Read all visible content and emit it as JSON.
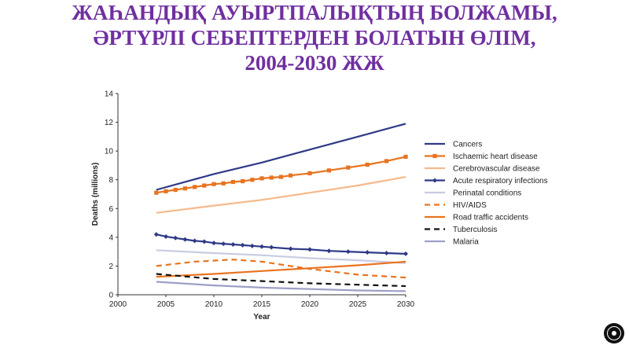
{
  "slide": {
    "title_lines": [
      "ЖАҺАНДЫҚ АУЫРТПАЛЫҚТЫҢ БОЛЖАМЫ,",
      "ӘРТҮРЛІ СЕБЕПТЕРДЕН БОЛАТЫН ӨЛІМ,",
      "2004-2030 ЖЖ"
    ],
    "title_color": "#7030a0",
    "nav_icon": "circle-nav-icon"
  },
  "chart_data": {
    "type": "line",
    "title": "",
    "xlabel": "Year",
    "ylabel": "Deaths (millions)",
    "xlim": [
      2000,
      2030
    ],
    "ylim": [
      0,
      14
    ],
    "xticks": [
      "2000",
      "2005",
      "2010",
      "2015",
      "2020",
      "2025",
      "2030"
    ],
    "yticks": [
      "0",
      "2",
      "4",
      "6",
      "8",
      "10",
      "12",
      "14"
    ],
    "grid": false,
    "legend_position": "right",
    "series": [
      {
        "name": "Cancers",
        "color": "#2e3a87",
        "style": "solid",
        "marker": "none",
        "x": [
          2004,
          2010,
          2015,
          2020,
          2025,
          2030
        ],
        "y": [
          7.3,
          8.4,
          9.2,
          10.1,
          11.0,
          11.9
        ]
      },
      {
        "name": "Ischaemic heart disease",
        "color": "#e8731f",
        "style": "solid",
        "marker": "square",
        "x": [
          2004,
          2005,
          2006,
          2007,
          2008,
          2009,
          2010,
          2011,
          2012,
          2013,
          2014,
          2015,
          2016,
          2017,
          2018,
          2020,
          2022,
          2024,
          2026,
          2028,
          2030
        ],
        "y": [
          7.1,
          7.2,
          7.3,
          7.4,
          7.5,
          7.6,
          7.7,
          7.75,
          7.85,
          7.9,
          8.0,
          8.1,
          8.15,
          8.2,
          8.3,
          8.45,
          8.65,
          8.85,
          9.05,
          9.3,
          9.6
        ]
      },
      {
        "name": "Cerebrovascular disease",
        "color": "#f7b98b",
        "style": "solid",
        "marker": "none",
        "x": [
          2004,
          2010,
          2015,
          2020,
          2025,
          2030
        ],
        "y": [
          5.7,
          6.2,
          6.6,
          7.1,
          7.6,
          8.2
        ]
      },
      {
        "name": "Acute respiratory infections",
        "color": "#2e3a87",
        "style": "solid",
        "marker": "diamond",
        "x": [
          2004,
          2005,
          2006,
          2007,
          2008,
          2009,
          2010,
          2011,
          2012,
          2013,
          2014,
          2015,
          2016,
          2018,
          2020,
          2022,
          2024,
          2026,
          2028,
          2030
        ],
        "y": [
          4.2,
          4.05,
          3.95,
          3.85,
          3.75,
          3.7,
          3.6,
          3.55,
          3.5,
          3.45,
          3.4,
          3.35,
          3.3,
          3.2,
          3.15,
          3.05,
          3.0,
          2.95,
          2.9,
          2.85
        ]
      },
      {
        "name": "Perinatal conditions",
        "color": "#c9cbe3",
        "style": "solid",
        "marker": "none",
        "x": [
          2004,
          2010,
          2015,
          2020,
          2025,
          2030
        ],
        "y": [
          3.1,
          2.9,
          2.75,
          2.55,
          2.4,
          2.2
        ]
      },
      {
        "name": "HIV/AIDS",
        "color": "#e8731f",
        "style": "dashed",
        "marker": "none",
        "x": [
          2004,
          2008,
          2012,
          2015,
          2020,
          2025,
          2030
        ],
        "y": [
          2.0,
          2.3,
          2.45,
          2.3,
          1.8,
          1.4,
          1.2
        ]
      },
      {
        "name": "Road traffic accidents",
        "color": "#e8731f",
        "style": "solid",
        "marker": "none",
        "x": [
          2004,
          2010,
          2015,
          2020,
          2025,
          2030
        ],
        "y": [
          1.25,
          1.45,
          1.65,
          1.85,
          2.05,
          2.3
        ]
      },
      {
        "name": "Tuberculosis",
        "color": "#111111",
        "style": "dashed",
        "marker": "none",
        "x": [
          2004,
          2010,
          2015,
          2020,
          2025,
          2030
        ],
        "y": [
          1.45,
          1.1,
          0.95,
          0.8,
          0.7,
          0.6
        ]
      },
      {
        "name": "Malaria",
        "color": "#9d9fc6",
        "style": "solid",
        "marker": "none",
        "x": [
          2004,
          2010,
          2015,
          2020,
          2025,
          2030
        ],
        "y": [
          0.9,
          0.65,
          0.5,
          0.4,
          0.3,
          0.25
        ]
      }
    ]
  }
}
